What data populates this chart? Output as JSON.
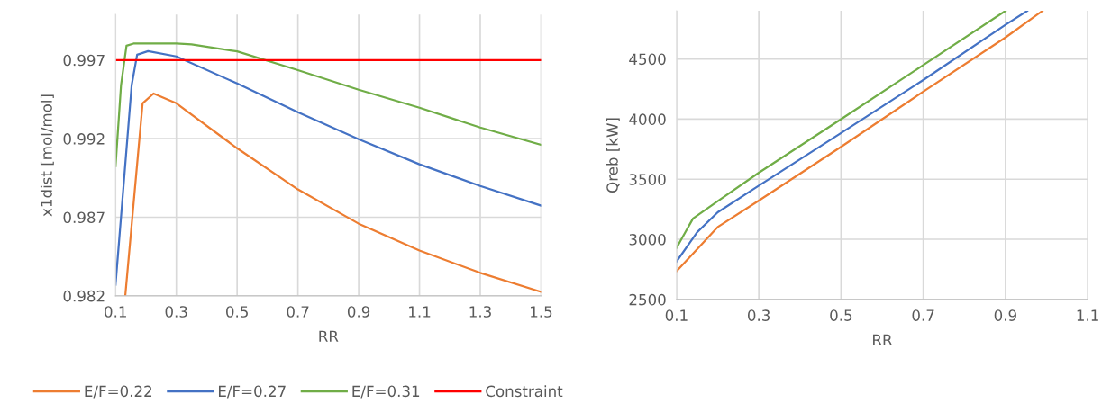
{
  "chart_data": [
    {
      "type": "line",
      "xlabel": "RR",
      "ylabel": "x1dist [mol/mol]",
      "xlim": [
        0.1,
        1.5
      ],
      "xticks": [
        0.1,
        0.3,
        0.5,
        0.7,
        0.9,
        1.1,
        1.3,
        1.5
      ],
      "ylim": [
        0.982,
        0.9999
      ],
      "yticks": [
        0.982,
        0.987,
        0.992,
        0.997
      ],
      "grid": true,
      "legend": "bottom",
      "marker": "none",
      "line_style": "solid",
      "series": [
        {
          "name": "E/F=0.22",
          "color": "#ed7d31",
          "x": [
            0.132,
            0.189,
            0.225,
            0.3,
            0.5,
            0.7,
            0.9,
            1.1,
            1.3,
            1.5
          ],
          "values": [
            0.982,
            0.99425,
            0.99487,
            0.99425,
            0.99139,
            0.98877,
            0.98659,
            0.98488,
            0.98346,
            0.98225
          ]
        },
        {
          "name": "E/F=0.27",
          "color": "#4472c4",
          "x": [
            0.1,
            0.153,
            0.171,
            0.207,
            0.3,
            0.5,
            0.7,
            0.9,
            1.1,
            1.3,
            1.5
          ],
          "values": [
            0.98271,
            0.9954,
            0.99734,
            0.99757,
            0.99723,
            0.99551,
            0.99368,
            0.99197,
            0.99037,
            0.98899,
            0.98774
          ]
        },
        {
          "name": "E/F=0.31",
          "color": "#70ad47",
          "x": [
            0.1,
            0.118,
            0.136,
            0.159,
            0.3,
            0.35,
            0.5,
            0.7,
            0.9,
            1.1,
            1.3,
            1.5
          ],
          "values": [
            0.99025,
            0.9954,
            0.99791,
            0.99805,
            0.99805,
            0.998,
            0.99755,
            0.99636,
            0.99511,
            0.99397,
            0.99271,
            0.99161
          ]
        },
        {
          "name": "Constraint",
          "color": "#ff0000",
          "x": [
            0.1,
            1.5
          ],
          "values": [
            0.997,
            0.997
          ]
        }
      ]
    },
    {
      "type": "line",
      "xlabel": "RR",
      "ylabel": "Qreb [kW]",
      "xlim": [
        0.1,
        1.1
      ],
      "xticks": [
        0.1,
        0.3,
        0.5,
        0.7,
        0.9,
        1.1
      ],
      "ylim": [
        2500,
        4900
      ],
      "yticks": [
        2500,
        3000,
        3500,
        4000,
        4500
      ],
      "grid": true,
      "marker": "none",
      "line_style": "solid",
      "series": [
        {
          "color": "#ed7d31",
          "x": [
            0.1,
            0.2,
            0.3,
            0.5,
            0.7,
            0.9,
            0.99
          ],
          "values": [
            2735,
            3102,
            3322,
            3769,
            4228,
            4678,
            4900
          ]
        },
        {
          "color": "#4472c4",
          "x": [
            0.1,
            0.15,
            0.2,
            0.3,
            0.5,
            0.7,
            0.9,
            0.953
          ],
          "values": [
            2815,
            3059,
            3225,
            3446,
            3884,
            4325,
            4784,
            4900
          ]
        },
        {
          "color": "#70ad47",
          "x": [
            0.1,
            0.14,
            0.2,
            0.3,
            0.5,
            0.7,
            0.9
          ],
          "values": [
            2930,
            3173,
            3317,
            3554,
            3999,
            4449,
            4900
          ]
        }
      ]
    }
  ]
}
